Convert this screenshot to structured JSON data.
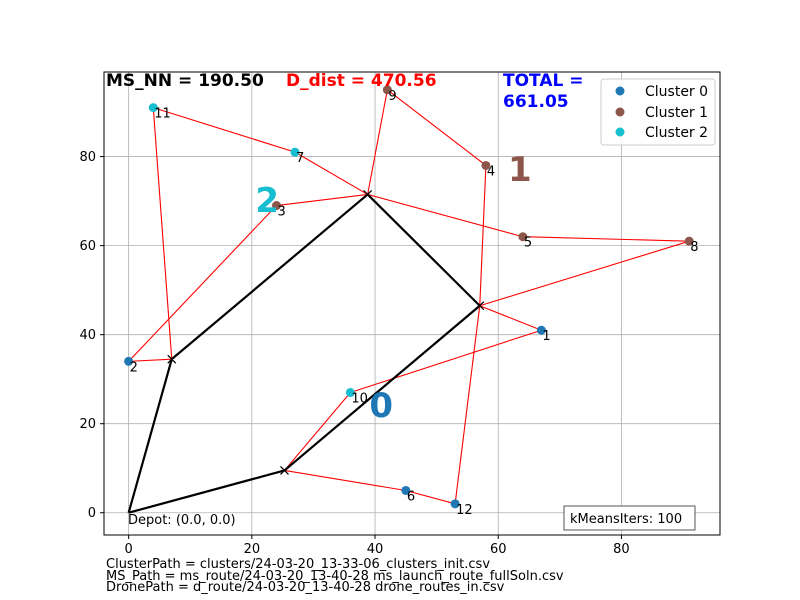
{
  "colors": {
    "cluster0": "#1f77b4",
    "cluster1": "#8c564b",
    "cluster2": "#17becf",
    "drone_edge": "#ff0000",
    "ms_edge": "#000000",
    "ms_nn_text": "#000000",
    "d_dist_text": "#ff0000",
    "total_text": "#0000ff",
    "grid": "#b0b0b0"
  },
  "header": {
    "ms_nn": "MS_NN = 190.50",
    "d_dist": "D_dist = 470.56",
    "total_line1": "TOTAL =",
    "total_line2": "661.05"
  },
  "legend": {
    "placement": "upper-right",
    "entries": [
      "Cluster 0",
      "Cluster 1",
      "Cluster 2"
    ]
  },
  "kmeans_box": "kMeansIters: 100",
  "depot_label": "Depot: (0.0, 0.0)",
  "footer": {
    "line1": "ClusterPath = clusters/24-03-20_13-33-06_clusters_init.csv",
    "line2": "MS_Path = ms_route/24-03-20_13-40-28 ms_launch_route_fullSoln.csv",
    "line3": "DronePath = d_route/24-03-20_13-40-28 drone_routes_in.csv"
  },
  "chart_data": {
    "type": "scatter",
    "xlim": [
      -4,
      96
    ],
    "ylim": [
      -5,
      99
    ],
    "grid": true,
    "x_ticks": [
      0,
      20,
      40,
      60,
      80
    ],
    "y_ticks": [
      0,
      20,
      40,
      60,
      80
    ],
    "x_tick_labels": [
      "0",
      "20",
      "40",
      "60",
      "80"
    ],
    "y_tick_labels": [
      "0",
      "20",
      "40",
      "60",
      "80"
    ],
    "depot": [
      0,
      0
    ],
    "points": [
      {
        "id": "1",
        "x": 67,
        "y": 41,
        "cluster": 0
      },
      {
        "id": "2",
        "x": 0,
        "y": 34,
        "cluster": 0
      },
      {
        "id": "3",
        "x": 24,
        "y": 69,
        "cluster": 1
      },
      {
        "id": "4",
        "x": 58,
        "y": 78,
        "cluster": 1
      },
      {
        "id": "5",
        "x": 64,
        "y": 62,
        "cluster": 1
      },
      {
        "id": "6",
        "x": 45,
        "y": 5,
        "cluster": 0
      },
      {
        "id": "7",
        "x": 27,
        "y": 81,
        "cluster": 2
      },
      {
        "id": "8",
        "x": 91,
        "y": 61,
        "cluster": 1
      },
      {
        "id": "9",
        "x": 42,
        "y": 95,
        "cluster": 1
      },
      {
        "id": "10",
        "x": 36,
        "y": 27,
        "cluster": 2
      },
      {
        "id": "11",
        "x": 4,
        "y": 91,
        "cluster": 2
      },
      {
        "id": "12",
        "x": 53,
        "y": 2,
        "cluster": 0
      }
    ],
    "launch_points": [
      {
        "x": 0,
        "y": 0
      },
      {
        "x": 7,
        "y": 34.5
      },
      {
        "x": 38.8,
        "y": 71.5
      },
      {
        "x": 57,
        "y": 46.5
      },
      {
        "x": 25.3,
        "y": 9.5
      }
    ],
    "ms_route_order": [
      0,
      1,
      2,
      3,
      4,
      0
    ],
    "drone_edges": [
      [
        [
          7,
          34.5
        ],
        [
          0,
          34
        ]
      ],
      [
        [
          0,
          34
        ],
        [
          24,
          69
        ]
      ],
      [
        [
          24,
          69
        ],
        [
          38.8,
          71.5
        ]
      ],
      [
        [
          7,
          34.5
        ],
        [
          4,
          91
        ]
      ],
      [
        [
          4,
          91
        ],
        [
          27,
          81
        ]
      ],
      [
        [
          27,
          81
        ],
        [
          38.8,
          71.5
        ]
      ],
      [
        [
          38.8,
          71.5
        ],
        [
          42,
          95
        ]
      ],
      [
        [
          42,
          95
        ],
        [
          58,
          78
        ]
      ],
      [
        [
          58,
          78
        ],
        [
          57,
          46.5
        ]
      ],
      [
        [
          38.8,
          71.5
        ],
        [
          64,
          62
        ]
      ],
      [
        [
          64,
          62
        ],
        [
          91,
          61
        ]
      ],
      [
        [
          91,
          61
        ],
        [
          57,
          46.5
        ]
      ],
      [
        [
          57,
          46.5
        ],
        [
          67,
          41
        ]
      ],
      [
        [
          67,
          41
        ],
        [
          36,
          27
        ]
      ],
      [
        [
          36,
          27
        ],
        [
          25.3,
          9.5
        ]
      ],
      [
        [
          25.3,
          9.5
        ],
        [
          45,
          5
        ]
      ],
      [
        [
          45,
          5
        ],
        [
          53,
          2
        ]
      ],
      [
        [
          53,
          2
        ],
        [
          57,
          46.5
        ]
      ]
    ],
    "cluster_labels": [
      {
        "text": "0",
        "x": 41,
        "y": 21.5,
        "cluster": 0
      },
      {
        "text": "1",
        "x": 63.5,
        "y": 74.5,
        "cluster": 1
      },
      {
        "text": "2",
        "x": 22.5,
        "y": 67.5,
        "cluster": 2
      }
    ]
  }
}
